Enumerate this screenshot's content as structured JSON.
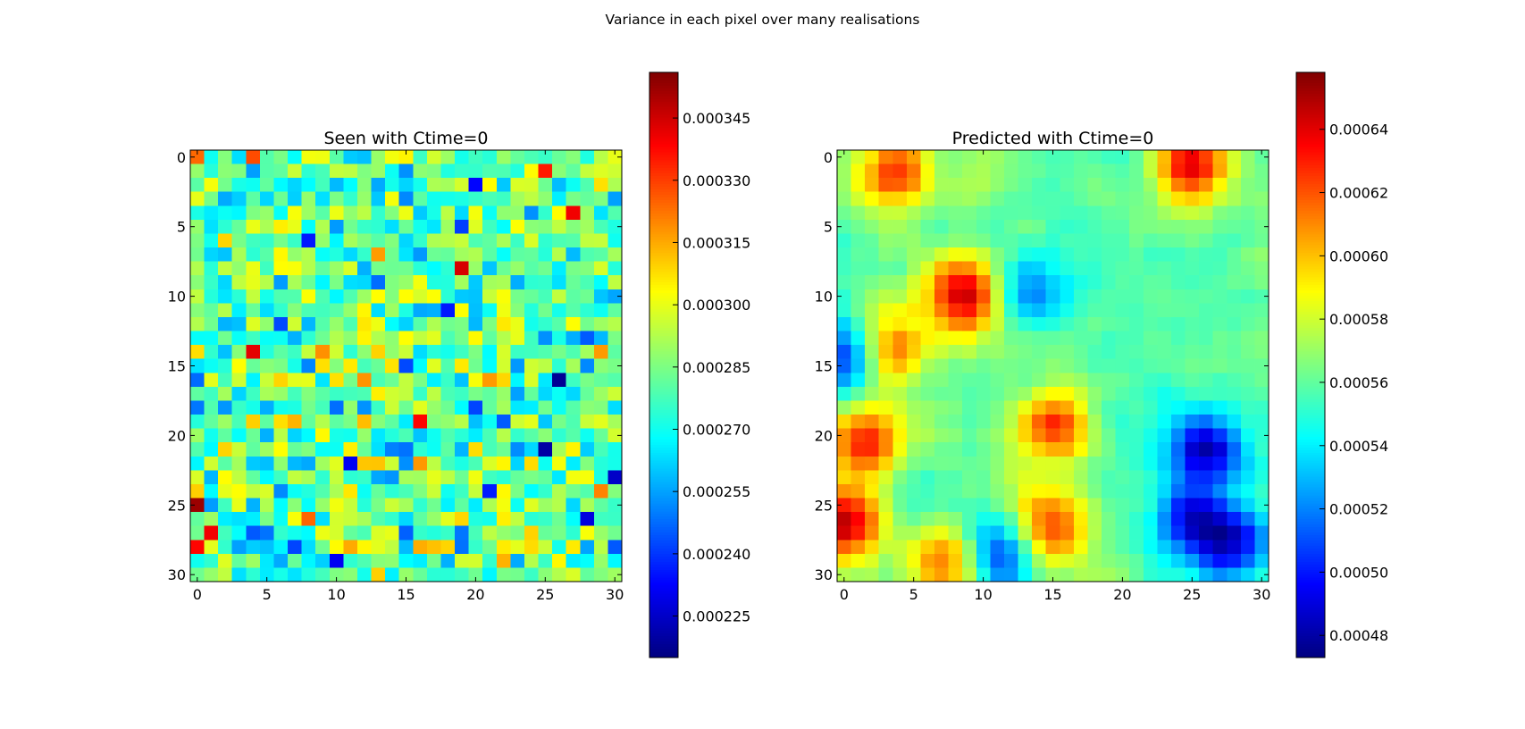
{
  "figure": {
    "suptitle": "Variance in each pixel over many realisations"
  },
  "chart_data": [
    {
      "type": "heatmap",
      "title": "Seen with Ctime=0",
      "xlabel": "",
      "ylabel": "",
      "grid_size": 31,
      "x_ticks": [
        0,
        5,
        10,
        15,
        20,
        25,
        30
      ],
      "y_ticks": [
        0,
        5,
        10,
        15,
        20,
        25,
        30
      ],
      "colormap": "jet",
      "y_axis_inverted": true,
      "colorbar": {
        "min": 0.000215,
        "max": 0.000356,
        "ticks": [
          0.000225,
          0.00024,
          0.000255,
          0.00027,
          0.000285,
          0.0003,
          0.000315,
          0.00033,
          0.000345
        ],
        "tick_labels": [
          "0.000225",
          "0.000240",
          "0.000255",
          "0.000270",
          "0.000285",
          "0.000300",
          "0.000315",
          "0.000330",
          "0.000345"
        ]
      },
      "pattern": "spatially uncorrelated noise; values mostly near 0.000275-0.000285",
      "notable_cells": [
        {
          "x": 0,
          "y": 25,
          "value": 0.000352
        },
        {
          "x": 0,
          "y": 28,
          "value": 0.000338
        },
        {
          "x": 1,
          "y": 27,
          "value": 0.00034
        },
        {
          "x": 4,
          "y": 0,
          "value": 0.000328
        },
        {
          "x": 4,
          "y": 14,
          "value": 0.000342
        },
        {
          "x": 19,
          "y": 8,
          "value": 0.000344
        },
        {
          "x": 16,
          "y": 19,
          "value": 0.000338
        },
        {
          "x": 25,
          "y": 1,
          "value": 0.000335
        },
        {
          "x": 27,
          "y": 4,
          "value": 0.00034
        },
        {
          "x": 26,
          "y": 16,
          "value": 0.000218
        },
        {
          "x": 25,
          "y": 21,
          "value": 0.00022
        },
        {
          "x": 30,
          "y": 23,
          "value": 0.000225
        },
        {
          "x": 28,
          "y": 26,
          "value": 0.000228
        },
        {
          "x": 20,
          "y": 2,
          "value": 0.000233
        },
        {
          "x": 11,
          "y": 22,
          "value": 0.000231
        },
        {
          "x": 10,
          "y": 29,
          "value": 0.000231
        }
      ]
    },
    {
      "type": "heatmap",
      "title": "Predicted with Ctime=0",
      "xlabel": "",
      "ylabel": "",
      "grid_size": 31,
      "x_ticks": [
        0,
        5,
        10,
        15,
        20,
        25,
        30
      ],
      "y_ticks": [
        0,
        5,
        10,
        15,
        20,
        25,
        30
      ],
      "colormap": "jet",
      "y_axis_inverted": true,
      "colorbar": {
        "min": 0.000473,
        "max": 0.000658,
        "ticks": [
          0.00048,
          0.0005,
          0.00052,
          0.00054,
          0.00056,
          0.00058,
          0.0006,
          0.00062,
          0.00064
        ],
        "tick_labels": [
          "0.00048",
          "0.00050",
          "0.00052",
          "0.00054",
          "0.00056",
          "0.00058",
          "0.00060",
          "0.00062",
          "0.00064"
        ]
      },
      "pattern": "spatially smooth field; baseline near 0.000560",
      "features": [
        {
          "x": 8.5,
          "y": 10,
          "peak": 0.00065
        },
        {
          "x": 15,
          "y": 19.5,
          "peak": 0.000625
        },
        {
          "x": 15,
          "y": 26.5,
          "peak": 0.000625
        },
        {
          "x": 1.5,
          "y": 20.5,
          "peak": 0.00063
        },
        {
          "x": 0,
          "y": 26.5,
          "peak": 0.000645
        },
        {
          "x": 3.5,
          "y": 1,
          "peak": 0.000625
        },
        {
          "x": 25,
          "y": 0.5,
          "peak": 0.00064
        },
        {
          "x": 7.5,
          "y": 29,
          "peak": 0.000615
        },
        {
          "x": 3,
          "y": 13.5,
          "peak": 0.000615
        },
        {
          "x": 26,
          "y": 21,
          "trough": 0.000478
        },
        {
          "x": 25,
          "y": 26,
          "trough": 0.000495
        },
        {
          "x": 28,
          "y": 28,
          "trough": 0.000495
        },
        {
          "x": 0,
          "y": 14,
          "trough": 0.0005
        },
        {
          "x": 11,
          "y": 28.5,
          "trough": 0.000505
        },
        {
          "x": 13.5,
          "y": 9.5,
          "trough": 0.000525
        }
      ]
    }
  ]
}
